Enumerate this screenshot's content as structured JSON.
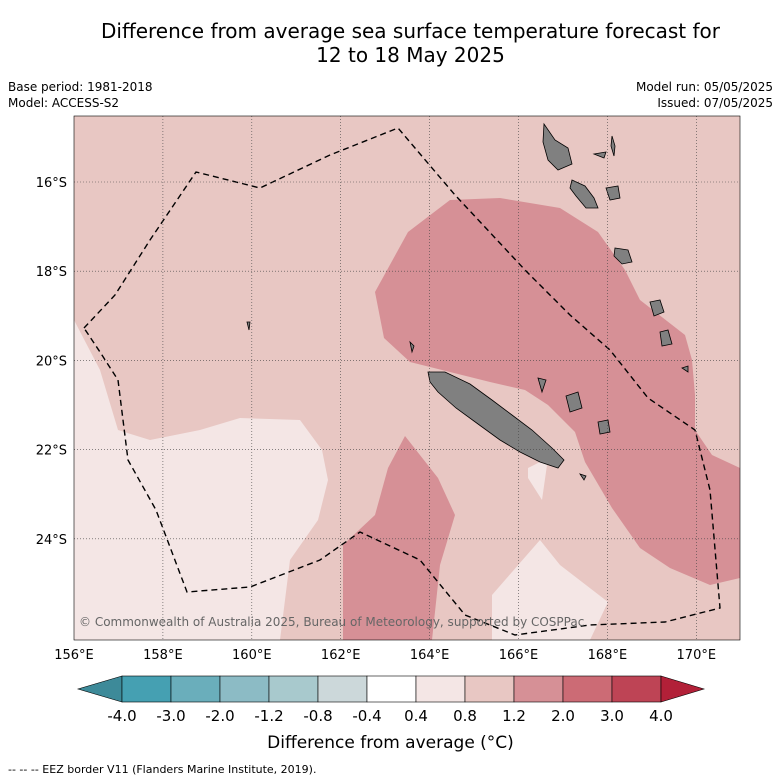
{
  "title_line1": "Difference from average sea surface temperature forecast for",
  "title_line2": "12 to 18 May 2025",
  "meta": {
    "base_period": "Base period: 1981-2018",
    "model": "Model: ACCESS-S2",
    "model_run": "Model run: 05/05/2025",
    "issued": "Issued: 07/05/2025"
  },
  "copyright": "© Commonwealth of Australia 2025, Bureau of Meteorology, supported by COSPPac",
  "longitude_ticks": [
    "156°E",
    "158°E",
    "160°E",
    "162°E",
    "164°E",
    "166°E",
    "168°E",
    "170°E"
  ],
  "latitude_ticks": [
    "16°S",
    "18°S",
    "20°S",
    "22°S",
    "24°S"
  ],
  "colorbar": {
    "label": "Difference from average (°C)",
    "tick_labels": [
      "-4.0",
      "-3.0",
      "-2.0",
      "-1.2",
      "-0.8",
      "-0.4",
      "0.4",
      "0.8",
      "1.2",
      "2.0",
      "3.0",
      "4.0"
    ],
    "colors": [
      "#45a0b2",
      "#6aaebb",
      "#8cbbc5",
      "#a8c9cd",
      "#ccd8da",
      "#ffffff",
      "#f4e6e5",
      "#e8c7c3",
      "#d69096",
      "#cc6b75",
      "#be4455"
    ],
    "under_color": "#3d8a99",
    "over_color": "#b22038"
  },
  "footnote": "--  --  -- EEZ border V11 (Flanders Marine Institute, 2019)."
}
